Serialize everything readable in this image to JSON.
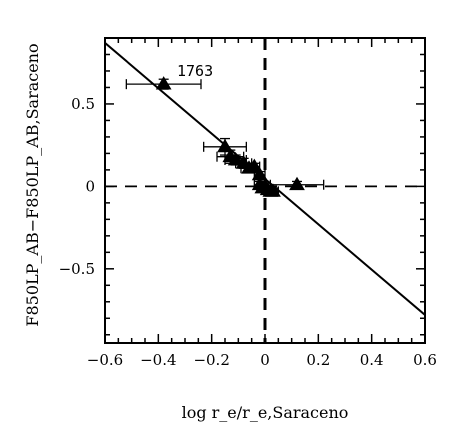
{
  "chart_data": {
    "type": "scatter",
    "title": "",
    "xlabel": "log r_e/r_e,Saraceno",
    "ylabel": "F850LP_AB−F850LP_AB,Saraceno",
    "xlim": [
      -0.6,
      0.6
    ],
    "ylim": [
      -0.95,
      0.9
    ],
    "x_ticks": [
      -0.6,
      -0.4,
      -0.2,
      0,
      0.2,
      0.4,
      0.6
    ],
    "x_tick_labels": [
      "−0.6",
      "−0.4",
      "−0.2",
      "0",
      "0.2",
      "0.4",
      "0.6"
    ],
    "y_ticks": [
      -0.5,
      0,
      0.5
    ],
    "y_tick_labels": [
      "−0.5",
      "0",
      "0.5"
    ],
    "grid": false,
    "reference_lines": [
      {
        "orientation": "vertical",
        "value": 0,
        "style": "dashed"
      },
      {
        "orientation": "horizontal",
        "value": 0,
        "style": "dashed"
      }
    ],
    "fit_line": {
      "x": [
        -0.6,
        0.6
      ],
      "y": [
        0.87,
        -0.78
      ]
    },
    "points": [
      {
        "x": -0.38,
        "y": 0.62,
        "xerr": [
          0.14,
          0.14
        ],
        "yerr": [
          0.03,
          0.03
        ]
      },
      {
        "x": -0.15,
        "y": 0.24,
        "xerr": [
          0.08,
          0.08
        ],
        "yerr": [
          0.05,
          0.05
        ]
      },
      {
        "x": -0.13,
        "y": 0.18,
        "xerr": [
          0.05,
          0.05
        ],
        "yerr": [
          0.04,
          0.04
        ]
      },
      {
        "x": -0.11,
        "y": 0.16,
        "xerr": [
          0.04,
          0.04
        ],
        "yerr": [
          0.03,
          0.03
        ]
      },
      {
        "x": -0.08,
        "y": 0.14,
        "xerr": [
          0.03,
          0.03
        ],
        "yerr": [
          0.03,
          0.03
        ]
      },
      {
        "x": -0.06,
        "y": 0.11,
        "xerr": [
          0.03,
          0.03
        ],
        "yerr": [
          0.02,
          0.02
        ]
      },
      {
        "x": -0.04,
        "y": 0.12,
        "xerr": [
          0.02,
          0.02
        ],
        "yerr": [
          0.02,
          0.02
        ]
      },
      {
        "x": -0.02,
        "y": 0.07,
        "xerr": [
          0.02,
          0.02
        ],
        "yerr": [
          0.02,
          0.02
        ]
      },
      {
        "x": -0.02,
        "y": 0.01,
        "xerr": [
          0.02,
          0.02
        ],
        "yerr": [
          0.02,
          0.02
        ]
      },
      {
        "x": -0.01,
        "y": -0.01,
        "xerr": [
          0.02,
          0.02
        ],
        "yerr": [
          0.02,
          0.02
        ]
      },
      {
        "x": 0.0,
        "y": 0.0,
        "xerr": [
          0.02,
          0.02
        ],
        "yerr": [
          0.02,
          0.02
        ]
      },
      {
        "x": 0.01,
        "y": -0.02,
        "xerr": [
          0.02,
          0.02
        ],
        "yerr": [
          0.02,
          0.02
        ]
      },
      {
        "x": 0.02,
        "y": -0.03,
        "xerr": [
          0.02,
          0.02
        ],
        "yerr": [
          0.02,
          0.02
        ]
      },
      {
        "x": 0.03,
        "y": -0.03,
        "xerr": [
          0.02,
          0.02
        ],
        "yerr": [
          0.02,
          0.02
        ]
      },
      {
        "x": 0.12,
        "y": 0.01,
        "xerr": [
          0.1,
          0.1
        ],
        "yerr": [
          0.02,
          0.02
        ]
      }
    ],
    "annotations": [
      {
        "text": "1763",
        "x": -0.33,
        "y": 0.67
      }
    ]
  }
}
